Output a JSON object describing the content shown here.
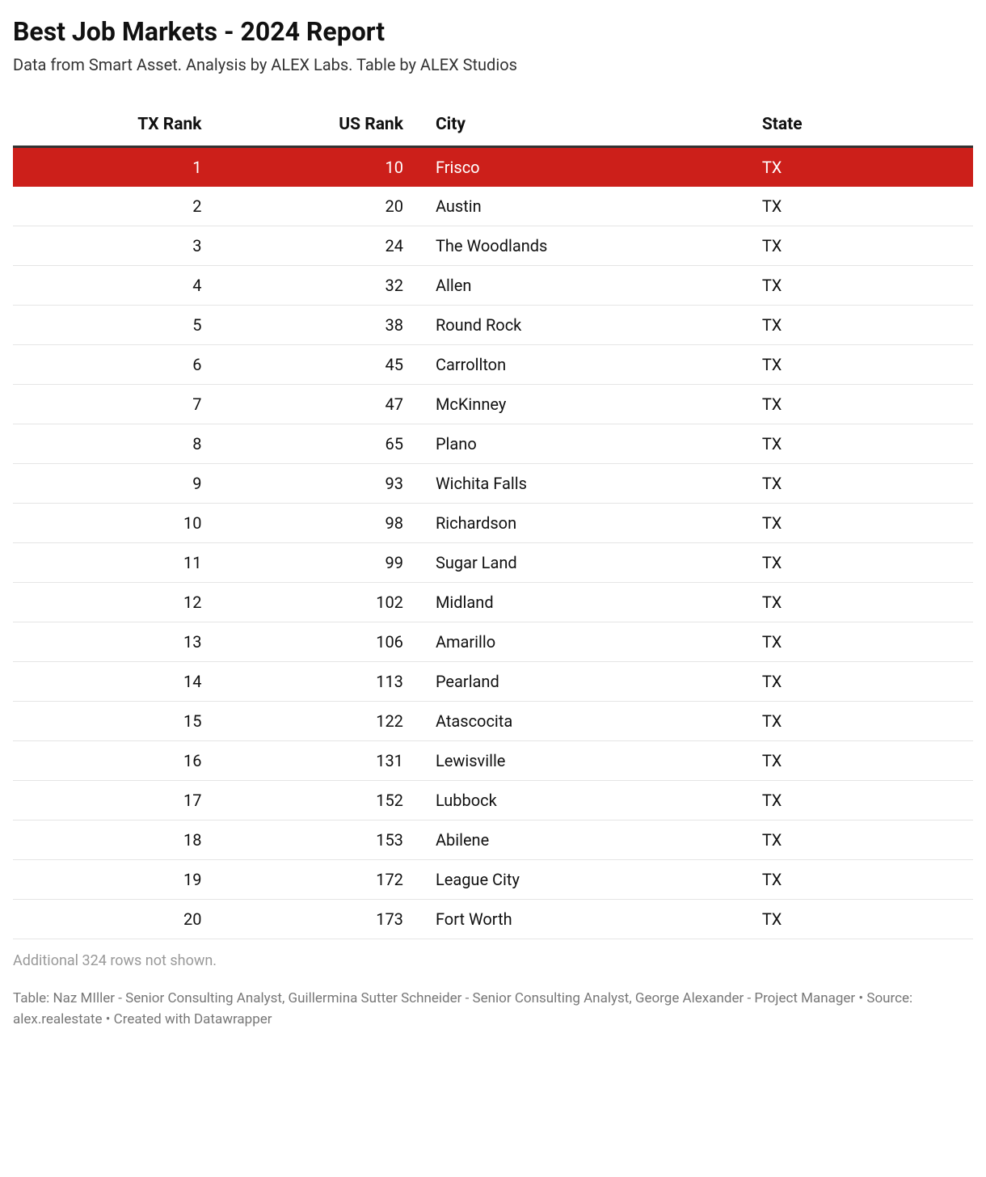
{
  "header": {
    "title": "Best Job Markets - 2024 Report",
    "subtitle": "Data from Smart Asset. Analysis by ALEX Labs. Table by ALEX Studios"
  },
  "table": {
    "type": "table",
    "background_color": "#ffffff",
    "border_color": "#e5e5e5",
    "header_border_color": "#333333",
    "text_color": "#111111",
    "highlight_bg": "#cc1f1a",
    "highlight_text": "#ffffff",
    "header_fontsize": 21,
    "cell_fontsize": 20,
    "columns": [
      {
        "key": "tx_rank",
        "label": "TX Rank",
        "align": "right",
        "width_pct": 21
      },
      {
        "key": "us_rank",
        "label": "US Rank",
        "align": "right",
        "width_pct": 21
      },
      {
        "key": "city",
        "label": "City",
        "align": "left",
        "width_pct": 34
      },
      {
        "key": "state",
        "label": "State",
        "align": "left",
        "width_pct": 24
      }
    ],
    "rows": [
      {
        "tx_rank": 1,
        "us_rank": 10,
        "city": "Frisco",
        "state": "TX",
        "highlight": true
      },
      {
        "tx_rank": 2,
        "us_rank": 20,
        "city": "Austin",
        "state": "TX"
      },
      {
        "tx_rank": 3,
        "us_rank": 24,
        "city": "The Woodlands",
        "state": "TX"
      },
      {
        "tx_rank": 4,
        "us_rank": 32,
        "city": "Allen",
        "state": "TX"
      },
      {
        "tx_rank": 5,
        "us_rank": 38,
        "city": "Round Rock",
        "state": "TX"
      },
      {
        "tx_rank": 6,
        "us_rank": 45,
        "city": "Carrollton",
        "state": "TX"
      },
      {
        "tx_rank": 7,
        "us_rank": 47,
        "city": "McKinney",
        "state": "TX"
      },
      {
        "tx_rank": 8,
        "us_rank": 65,
        "city": "Plano",
        "state": "TX"
      },
      {
        "tx_rank": 9,
        "us_rank": 93,
        "city": "Wichita Falls",
        "state": "TX"
      },
      {
        "tx_rank": 10,
        "us_rank": 98,
        "city": "Richardson",
        "state": "TX"
      },
      {
        "tx_rank": 11,
        "us_rank": 99,
        "city": "Sugar Land",
        "state": "TX"
      },
      {
        "tx_rank": 12,
        "us_rank": 102,
        "city": "Midland",
        "state": "TX"
      },
      {
        "tx_rank": 13,
        "us_rank": 106,
        "city": "Amarillo",
        "state": "TX"
      },
      {
        "tx_rank": 14,
        "us_rank": 113,
        "city": "Pearland",
        "state": "TX"
      },
      {
        "tx_rank": 15,
        "us_rank": 122,
        "city": "Atascocita",
        "state": "TX"
      },
      {
        "tx_rank": 16,
        "us_rank": 131,
        "city": "Lewisville",
        "state": "TX"
      },
      {
        "tx_rank": 17,
        "us_rank": 152,
        "city": "Lubbock",
        "state": "TX"
      },
      {
        "tx_rank": 18,
        "us_rank": 153,
        "city": "Abilene",
        "state": "TX"
      },
      {
        "tx_rank": 19,
        "us_rank": 172,
        "city": "League City",
        "state": "TX"
      },
      {
        "tx_rank": 20,
        "us_rank": 173,
        "city": "Fort Worth",
        "state": "TX"
      }
    ],
    "truncation_note": "Additional 324 rows not shown."
  },
  "footer": {
    "text": "Table: Naz MIller - Senior Consulting Analyst, Guillermina Sutter Schneider - Senior Consulting Analyst, George Alexander - Project Manager • Source: alex.realestate • Created with Datawrapper"
  }
}
